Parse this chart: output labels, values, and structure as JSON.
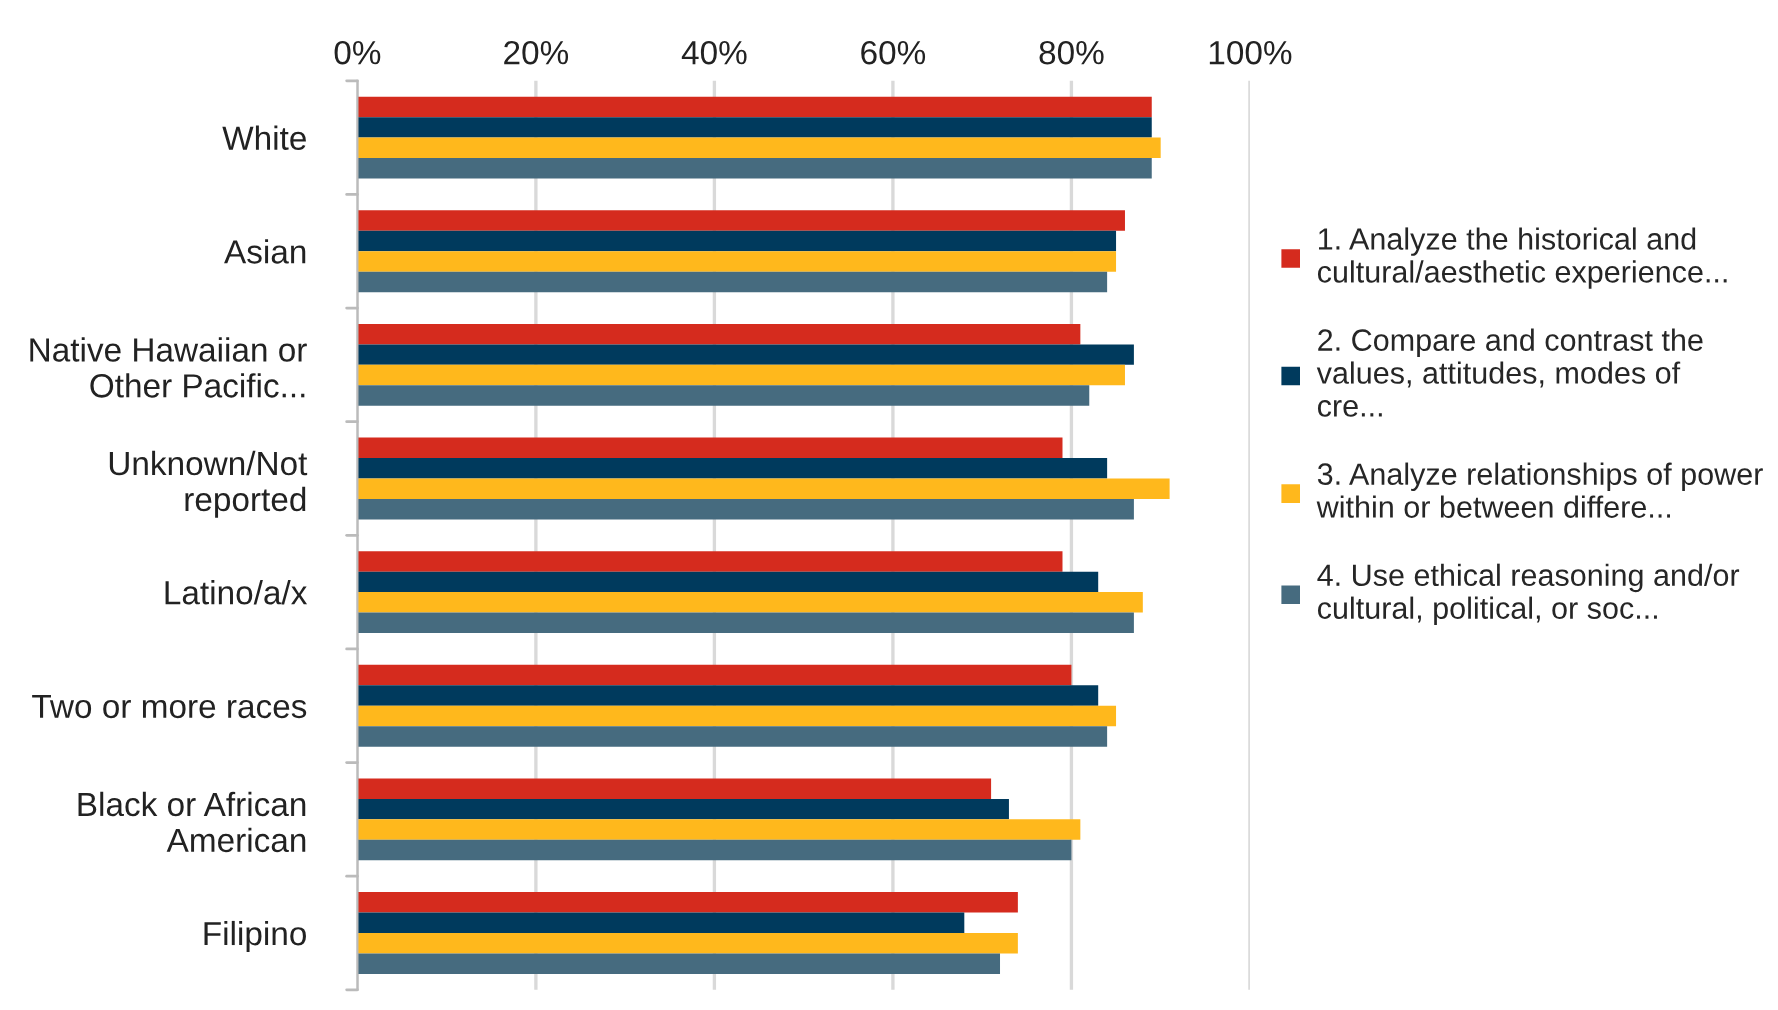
{
  "chart_data": {
    "type": "bar",
    "orientation": "horizontal",
    "categories": [
      "White",
      "Asian",
      "Native Hawaiian or Other Pacific...",
      "Unknown/Not reported",
      "Latino/a/x",
      "Two or more races",
      "Black or African American",
      "Filipino"
    ],
    "series": [
      {
        "name": "1. Analyze the historical and cultural/aesthetic experience...",
        "color": "#d52b1e",
        "values": [
          89,
          86,
          81,
          79,
          79,
          80,
          71,
          74
        ]
      },
      {
        "name": "2. Compare and contrast the values, attitudes, modes of cre...",
        "color": "#003a5d",
        "values": [
          89,
          85,
          87,
          84,
          83,
          83,
          73,
          68
        ]
      },
      {
        "name": "3. Analyze relationships of power within or between differe...",
        "color": "#ffb81c",
        "values": [
          90,
          85,
          86,
          91,
          88,
          85,
          81,
          74
        ]
      },
      {
        "name": "4. Use ethical reasoning and/or cultural, political, or soc...",
        "color": "#466b7f",
        "values": [
          89,
          84,
          82,
          87,
          87,
          84,
          80,
          72
        ]
      }
    ],
    "xlim": [
      0,
      100
    ],
    "xticks": [
      {
        "value": 0,
        "label": "0%"
      },
      {
        "value": 20,
        "label": "20%"
      },
      {
        "value": 40,
        "label": "40%"
      },
      {
        "value": 60,
        "label": "60%"
      },
      {
        "value": 80,
        "label": "80%"
      },
      {
        "value": 100,
        "label": "100%"
      }
    ],
    "grid": "x",
    "legend": "right"
  }
}
